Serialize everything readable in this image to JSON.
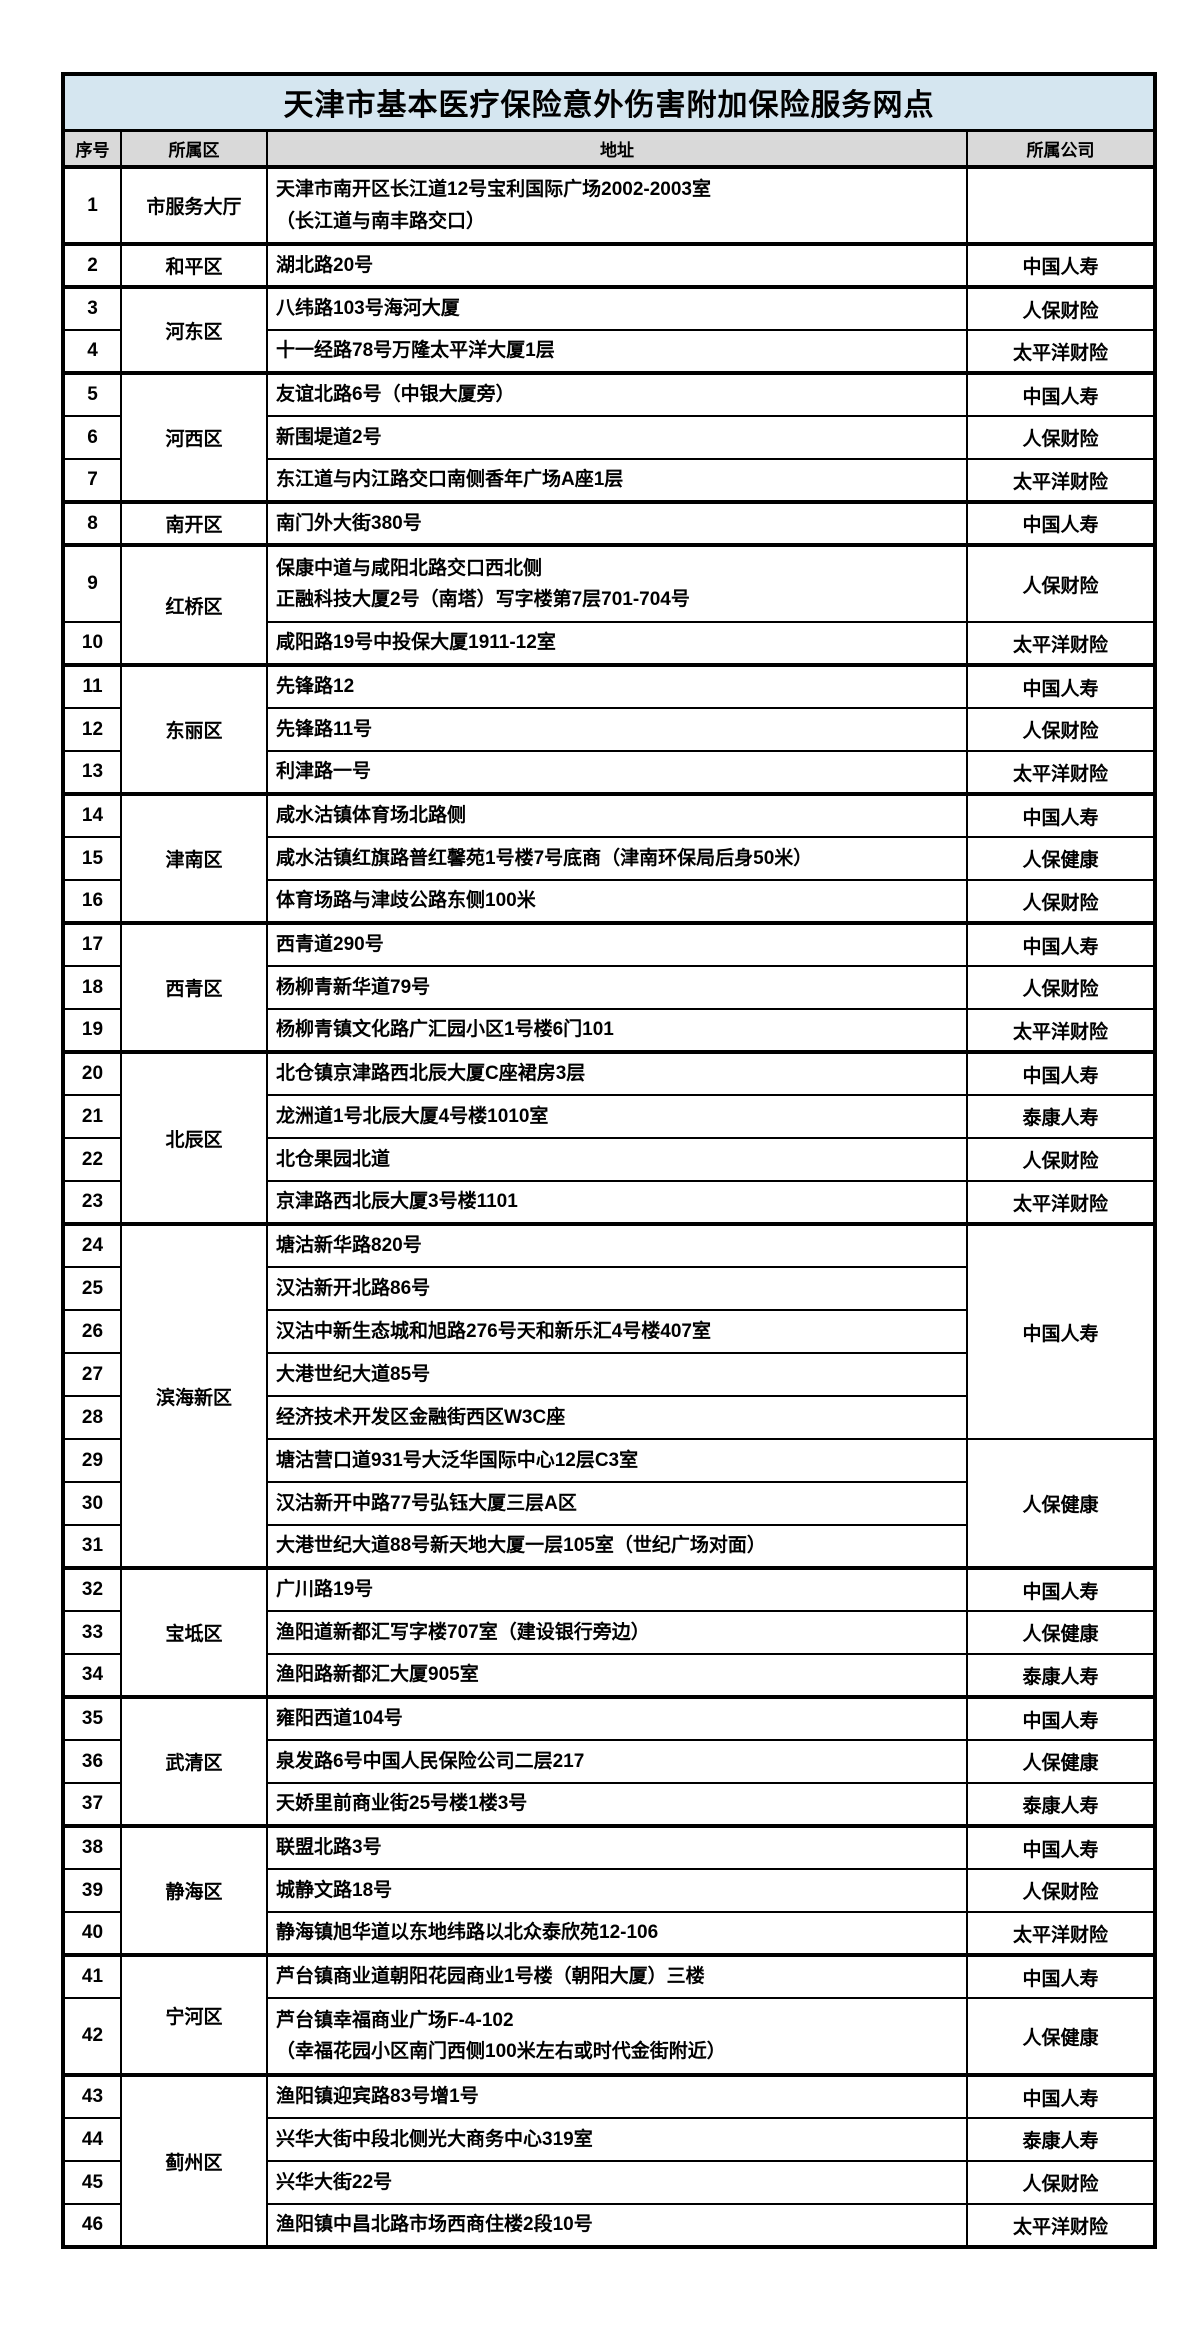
{
  "title": "天津市基本医疗保险意外伤害附加保险服务网点",
  "colors": {
    "title_bg": "#d5e6f0",
    "header_bg": "#d9d9d9",
    "border": "#000000",
    "page_bg": "#ffffff"
  },
  "table": {
    "columns": [
      "序号",
      "所属区",
      "地址",
      "所属公司"
    ],
    "companies_seen": [
      "中国人寿",
      "人保财险",
      "太平洋财险",
      "人保健康",
      "泰康人寿"
    ],
    "rows": [
      {
        "no": "1",
        "district": "市服务大厅",
        "district_span": 1,
        "address": [
          "天津市南开区长江道12号宝利国际广场2002-2003室",
          "（长江道与南丰路交口）"
        ],
        "company": "",
        "company_span": 1,
        "group_start": true,
        "tall": true
      },
      {
        "no": "2",
        "district": "和平区",
        "district_span": 1,
        "address": "湖北路20号",
        "company": "中国人寿",
        "company_span": 1,
        "group_start": true
      },
      {
        "no": "3",
        "district": "河东区",
        "district_span": 2,
        "address": "八纬路103号海河大厦",
        "company": "人保财险",
        "company_span": 1,
        "group_start": true
      },
      {
        "no": "4",
        "address": "十一经路78号万隆太平洋大厦1层",
        "company": "太平洋财险",
        "company_span": 1
      },
      {
        "no": "5",
        "district": "河西区",
        "district_span": 3,
        "address": "友谊北路6号（中银大厦旁）",
        "company": "中国人寿",
        "company_span": 1,
        "group_start": true
      },
      {
        "no": "6",
        "address": "新围堤道2号",
        "company": "人保财险",
        "company_span": 1
      },
      {
        "no": "7",
        "address": "东江道与内江路交口南侧香年广场A座1层",
        "company": "太平洋财险",
        "company_span": 1
      },
      {
        "no": "8",
        "district": "南开区",
        "district_span": 1,
        "address": "南门外大街380号",
        "company": "中国人寿",
        "company_span": 1,
        "group_start": true
      },
      {
        "no": "9",
        "district": "红桥区",
        "district_span": 2,
        "address": [
          "保康中道与咸阳北路交口西北侧",
          "正融科技大厦2号（南塔）写字楼第7层701-704号"
        ],
        "company": "人保财险",
        "company_span": 1,
        "group_start": true,
        "tall": true
      },
      {
        "no": "10",
        "address": "咸阳路19号中投保大厦1911-12室",
        "company": "太平洋财险",
        "company_span": 1
      },
      {
        "no": "11",
        "district": "东丽区",
        "district_span": 3,
        "address": "先锋路12",
        "company": "中国人寿",
        "company_span": 1,
        "group_start": true
      },
      {
        "no": "12",
        "address": "先锋路11号",
        "company": "人保财险",
        "company_span": 1
      },
      {
        "no": "13",
        "address": "利津路一号",
        "company": "太平洋财险",
        "company_span": 1
      },
      {
        "no": "14",
        "district": "津南区",
        "district_span": 3,
        "address": "咸水沽镇体育场北路侧",
        "company": "中国人寿",
        "company_span": 1,
        "group_start": true
      },
      {
        "no": "15",
        "address": "咸水沽镇红旗路普红馨苑1号楼7号底商（津南环保局后身50米）",
        "company": "人保健康",
        "company_span": 1
      },
      {
        "no": "16",
        "address": "体育场路与津歧公路东侧100米",
        "company": "人保财险",
        "company_span": 1
      },
      {
        "no": "17",
        "district": "西青区",
        "district_span": 3,
        "address": "西青道290号",
        "company": "中国人寿",
        "company_span": 1,
        "group_start": true
      },
      {
        "no": "18",
        "address": "杨柳青新华道79号",
        "company": "人保财险",
        "company_span": 1
      },
      {
        "no": "19",
        "address": "杨柳青镇文化路广汇园小区1号楼6门101",
        "company": "太平洋财险",
        "company_span": 1
      },
      {
        "no": "20",
        "district": "北辰区",
        "district_span": 4,
        "address": "北仓镇京津路西北辰大厦C座裙房3层",
        "company": "中国人寿",
        "company_span": 1,
        "group_start": true
      },
      {
        "no": "21",
        "address": "龙洲道1号北辰大厦4号楼1010室",
        "company": "泰康人寿",
        "company_span": 1
      },
      {
        "no": "22",
        "address": "北仓果园北道",
        "company": "人保财险",
        "company_span": 1
      },
      {
        "no": "23",
        "address": "京津路西北辰大厦3号楼1101",
        "company": "太平洋财险",
        "company_span": 1
      },
      {
        "no": "24",
        "district": "滨海新区",
        "district_span": 8,
        "address": "塘沽新华路820号",
        "company": "中国人寿",
        "company_span": 5,
        "group_start": true
      },
      {
        "no": "25",
        "address": "汉沽新开北路86号"
      },
      {
        "no": "26",
        "address": "汉沽中新生态城和旭路276号天和新乐汇4号楼407室"
      },
      {
        "no": "27",
        "address": "大港世纪大道85号"
      },
      {
        "no": "28",
        "address": "经济技术开发区金融街西区W3C座"
      },
      {
        "no": "29",
        "address": "塘沽营口道931号大泛华国际中心12层C3室",
        "company": "人保健康",
        "company_span": 3
      },
      {
        "no": "30",
        "address": "汉沽新开中路77号弘钰大厦三层A区"
      },
      {
        "no": "31",
        "address": "大港世纪大道88号新天地大厦一层105室（世纪广场对面）"
      },
      {
        "no": "32",
        "district": "宝坻区",
        "district_span": 3,
        "address": "广川路19号",
        "company": "中国人寿",
        "company_span": 1,
        "group_start": true
      },
      {
        "no": "33",
        "address": "渔阳道新都汇写字楼707室（建设银行旁边）",
        "company": "人保健康",
        "company_span": 1
      },
      {
        "no": "34",
        "address": "渔阳路新都汇大厦905室",
        "company": "泰康人寿",
        "company_span": 1
      },
      {
        "no": "35",
        "district": "武清区",
        "district_span": 3,
        "address": "雍阳西道104号",
        "company": "中国人寿",
        "company_span": 1,
        "group_start": true
      },
      {
        "no": "36",
        "address": "泉发路6号中国人民保险公司二层217",
        "company": "人保健康",
        "company_span": 1
      },
      {
        "no": "37",
        "address": "天娇里前商业街25号楼1楼3号",
        "company": "泰康人寿",
        "company_span": 1
      },
      {
        "no": "38",
        "district": "静海区",
        "district_span": 3,
        "address": "联盟北路3号",
        "company": "中国人寿",
        "company_span": 1,
        "group_start": true
      },
      {
        "no": "39",
        "address": "城静文路18号",
        "company": "人保财险",
        "company_span": 1
      },
      {
        "no": "40",
        "address": "静海镇旭华道以东地纬路以北众泰欣苑12-106",
        "company": "太平洋财险",
        "company_span": 1
      },
      {
        "no": "41",
        "district": "宁河区",
        "district_span": 2,
        "address": "芦台镇商业道朝阳花园商业1号楼（朝阳大厦）三楼",
        "company": "中国人寿",
        "company_span": 1,
        "group_start": true
      },
      {
        "no": "42",
        "address": [
          "芦台镇幸福商业广场F-4-102",
          "（幸福花园小区南门西侧100米左右或时代金街附近）"
        ],
        "company": "人保健康",
        "company_span": 1,
        "tall": true
      },
      {
        "no": "43",
        "district": "蓟州区",
        "district_span": 4,
        "address": "渔阳镇迎宾路83号增1号",
        "company": "中国人寿",
        "company_span": 1,
        "group_start": true
      },
      {
        "no": "44",
        "address": "兴华大街中段北侧光大商务中心319室",
        "company": "泰康人寿",
        "company_span": 1
      },
      {
        "no": "45",
        "address": "兴华大街22号",
        "company": "人保财险",
        "company_span": 1
      },
      {
        "no": "46",
        "address": "渔阳镇中昌北路市场西商住楼2段10号",
        "company": "太平洋财险",
        "company_span": 1
      }
    ]
  }
}
